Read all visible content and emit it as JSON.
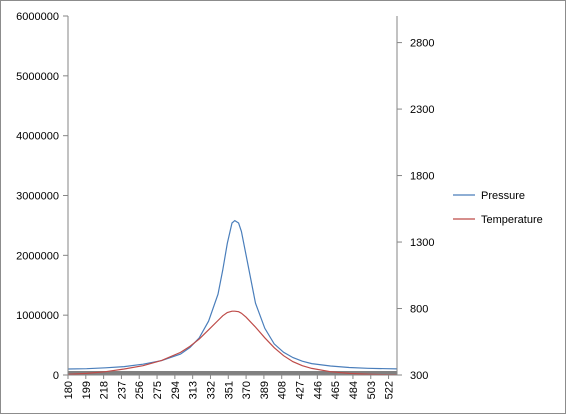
{
  "chart_data": {
    "type": "line",
    "title": "",
    "xlabel": "",
    "ylabel": "",
    "x_tick_labels": [
      "180",
      "199",
      "218",
      "237",
      "256",
      "275",
      "294",
      "313",
      "332",
      "351",
      "370",
      "389",
      "408",
      "427",
      "446",
      "465",
      "484",
      "503",
      "522"
    ],
    "x_range": [
      180,
      531
    ],
    "ylim_left": [
      0,
      6000000
    ],
    "y_ticks_left": [
      "0",
      "1000000",
      "2000000",
      "3000000",
      "4000000",
      "5000000",
      "6000000"
    ],
    "ylim_right": [
      300,
      3000
    ],
    "y_ticks_right": [
      "300",
      "800",
      "1300",
      "1800",
      "2300",
      "2800"
    ],
    "legend_position": "right",
    "grid": false,
    "series": [
      {
        "name": "Pressure",
        "axis": "left",
        "color": "#4a7ebb",
        "x": [
          180,
          200,
          220,
          240,
          260,
          280,
          300,
          310,
          320,
          330,
          340,
          345,
          350,
          355,
          358,
          362,
          365,
          370,
          380,
          390,
          400,
          410,
          420,
          430,
          440,
          460,
          480,
          500,
          520,
          531
        ],
        "y": [
          100000,
          105000,
          120000,
          140000,
          180000,
          240000,
          350000,
          460000,
          620000,
          900000,
          1350000,
          1750000,
          2200000,
          2540000,
          2580000,
          2540000,
          2400000,
          2000000,
          1200000,
          780000,
          520000,
          380000,
          290000,
          230000,
          190000,
          150000,
          125000,
          112000,
          105000,
          102000
        ]
      },
      {
        "name": "Temperature",
        "axis": "right",
        "color": "#be4b48",
        "x": [
          180,
          200,
          220,
          240,
          260,
          280,
          300,
          310,
          320,
          330,
          340,
          345,
          350,
          355,
          358,
          362,
          365,
          370,
          380,
          390,
          400,
          410,
          420,
          430,
          440,
          460,
          480,
          500,
          520,
          531
        ],
        "y": [
          305,
          312,
          325,
          345,
          370,
          410,
          470,
          515,
          570,
          640,
          710,
          745,
          770,
          780,
          780,
          776,
          765,
          735,
          660,
          580,
          505,
          445,
          400,
          370,
          350,
          325,
          312,
          306,
          302,
          301
        ]
      }
    ],
    "band": {
      "color": "#808080",
      "from_x": 180,
      "to_x": 531
    }
  }
}
